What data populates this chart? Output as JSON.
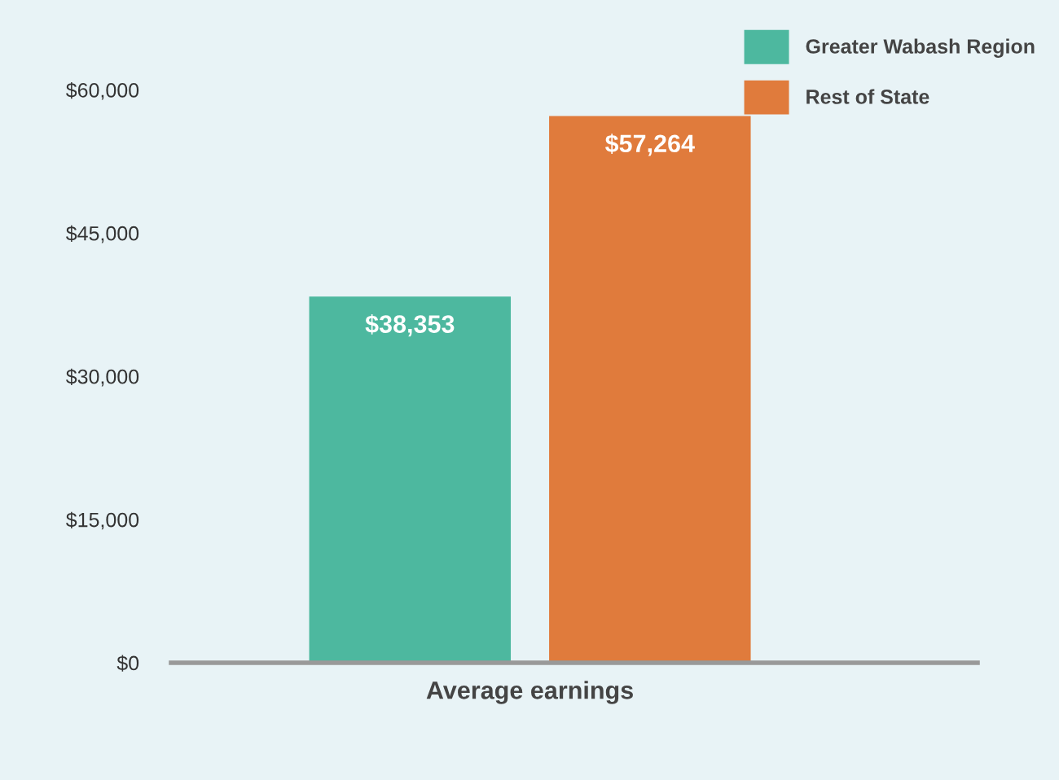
{
  "chart_data": {
    "type": "bar",
    "categories": [
      "Average earnings"
    ],
    "series": [
      {
        "name": "Greater Wabash Region",
        "color": "#4db89f",
        "values": [
          38353
        ],
        "value_labels": [
          "$38,353"
        ]
      },
      {
        "name": "Rest of State",
        "color": "#e07b3c",
        "values": [
          57264
        ],
        "value_labels": [
          "$57,264"
        ]
      }
    ],
    "ylim": [
      0,
      66000
    ],
    "yticks": [
      {
        "value": 0,
        "label": "$0"
      },
      {
        "value": 15000,
        "label": "$15,000"
      },
      {
        "value": 30000,
        "label": "$30,000"
      },
      {
        "value": 45000,
        "label": "$45,000"
      },
      {
        "value": 60000,
        "label": "$60,000"
      }
    ],
    "grid": false,
    "legend": "top right"
  }
}
